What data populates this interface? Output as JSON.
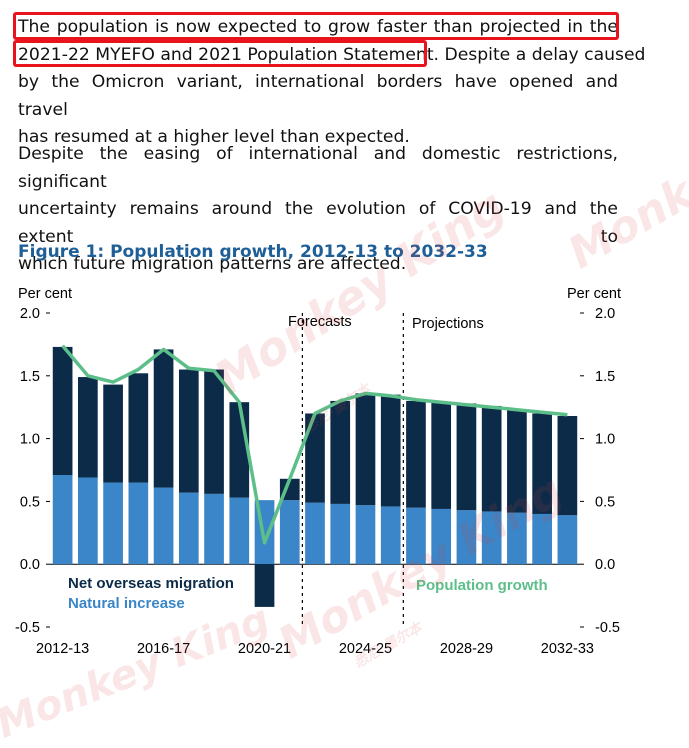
{
  "paragraph1": {
    "line1": "The population is now expected to grow faster than projected in the",
    "line2a": "2021-22 MYEFO and 2021 Population Statement.",
    "line2b": " Despite a delay caused",
    "line3": "by the Omicron variant, international borders have opened and travel",
    "line4": "has resumed at a higher level than expected."
  },
  "paragraph2": {
    "line1": "Despite the easing of international and domestic restrictions, significant",
    "line2": "uncertainty remains around the evolution of COVID-19 and the extent to",
    "line3": "which future migration patterns are affected."
  },
  "figure_title": "Figure 1: Population growth, 2012-13 to 2032-33",
  "highlight_color": "#e8131b",
  "watermark": {
    "brand": "Monkey King",
    "tag": "悉尼·墨尔本"
  },
  "chart_data": {
    "type": "bar",
    "stacked": true,
    "title": "Figure 1: Population growth, 2012-13 to 2032-33",
    "y_unit_left": "Per cent",
    "y_unit_right": "Per cent",
    "ylim": [
      -0.5,
      2.0
    ],
    "yticks": [
      "2.0",
      "1.5",
      "1.0",
      "0.5",
      "0.0",
      "-0.5"
    ],
    "ytick_values": [
      2.0,
      1.5,
      1.0,
      0.5,
      0.0,
      -0.5
    ],
    "categories": [
      "2012-13",
      "2013-14",
      "2014-15",
      "2015-16",
      "2016-17",
      "2017-18",
      "2018-19",
      "2019-20",
      "2020-21",
      "2021-22",
      "2022-23",
      "2023-24",
      "2024-25",
      "2025-26",
      "2026-27",
      "2027-28",
      "2028-29",
      "2029-30",
      "2030-31",
      "2031-32",
      "2032-33"
    ],
    "xtick_labels": [
      "2012-13",
      "2016-17",
      "2020-21",
      "2024-25",
      "2028-29",
      "2032-33"
    ],
    "xtick_indices": [
      0,
      4,
      8,
      12,
      16,
      20
    ],
    "series": [
      {
        "name": "Natural increase",
        "color": "#3a86c8",
        "values": [
          0.71,
          0.69,
          0.65,
          0.65,
          0.61,
          0.57,
          0.56,
          0.53,
          0.51,
          0.51,
          0.49,
          0.48,
          0.47,
          0.46,
          0.45,
          0.44,
          0.43,
          0.42,
          0.41,
          0.4,
          0.39
        ]
      },
      {
        "name": "Net overseas migration",
        "color": "#0c2b48",
        "values": [
          1.02,
          0.8,
          0.78,
          0.87,
          1.1,
          0.98,
          0.99,
          0.76,
          -0.34,
          0.17,
          0.71,
          0.82,
          0.89,
          0.89,
          0.85,
          0.85,
          0.85,
          0.84,
          0.82,
          0.8,
          0.79
        ]
      },
      {
        "name": "Population growth",
        "type": "line",
        "color": "#5cbf8a",
        "values": [
          1.74,
          1.5,
          1.45,
          1.55,
          1.71,
          1.56,
          1.54,
          1.29,
          0.17,
          0.68,
          1.2,
          1.3,
          1.36,
          1.34,
          1.31,
          1.29,
          1.27,
          1.25,
          1.23,
          1.21,
          1.19
        ]
      }
    ],
    "annotations": [
      "Forecasts",
      "Projections"
    ],
    "annotation_boundaries_after_index": [
      9,
      13
    ],
    "legend": {
      "net_overseas_migration": "Net overseas migration",
      "natural_increase": "Natural increase",
      "population_growth": "Population growth"
    },
    "grid": false
  }
}
